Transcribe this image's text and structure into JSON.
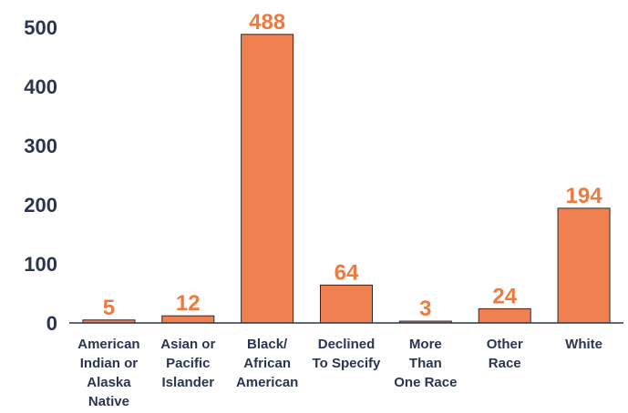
{
  "chart_data": {
    "type": "bar",
    "categories": [
      [
        "American",
        "Indian or",
        "Alaska",
        "Native"
      ],
      [
        "Asian or",
        "Pacific",
        "Islander"
      ],
      [
        "Black/",
        "African",
        "American"
      ],
      [
        "Declined",
        "To Specify"
      ],
      [
        "More",
        "Than",
        "One Race"
      ],
      [
        "Other",
        "Race"
      ],
      [
        "White"
      ]
    ],
    "values": [
      5,
      12,
      488,
      64,
      3,
      24,
      194
    ],
    "data_labels": [
      "5",
      "12",
      "488",
      "64",
      "3",
      "24",
      "194"
    ],
    "yticks": [
      "0",
      "100",
      "200",
      "300",
      "400",
      "500"
    ],
    "ylim": [
      0,
      500
    ],
    "grid": false,
    "title": "",
    "xlabel": "",
    "ylabel": "",
    "colors": {
      "bar": "#f0804f",
      "bar_stroke": "#2a2a2a",
      "data_label": "#ef7a3e",
      "axis_text": "#2a3550",
      "axis_line": "#2a3550"
    }
  }
}
